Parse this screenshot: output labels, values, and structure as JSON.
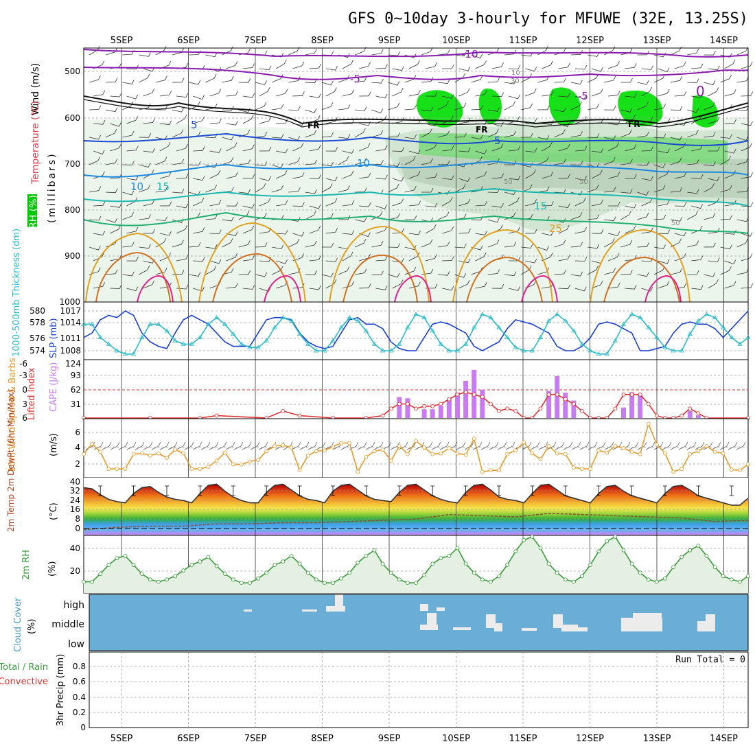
{
  "title": "GFS 0~10day 3-hourly for MFUWE (32E, 13.25S)",
  "dates": [
    "5SEP",
    "6SEP",
    "7SEP",
    "8SEP",
    "9SEP",
    "10SEP",
    "11SEP",
    "12SEP",
    "13SEP",
    "14SEP"
  ],
  "colors": {
    "grid": "#9a9a9a",
    "frame": "#000000",
    "rh_green": "#00dd00",
    "cloud_bg": "#6aaed6",
    "cape": "#c77cf0",
    "lifted": "#e03030",
    "wind_speed": "#e89a2a",
    "slp": "#1a3fd1",
    "thickness": "#2bbcc8",
    "rh2m": "#3a9a3a"
  },
  "panels": {
    "upper": {
      "ylabel_rh": "RH (%)",
      "ylabel_temp": "Temperature (°C)",
      "ylabel_wind": "Wind (m/s)",
      "ylabel_unit": "(millibars)",
      "ticks": [
        "500",
        "600",
        "700",
        "800",
        "900",
        "1000"
      ],
      "contour_labels": [
        "-10",
        "-5",
        "-5",
        "5",
        "5",
        "10",
        "10",
        "15",
        "15",
        "25",
        "FR",
        "FR",
        "FR",
        "50",
        "50",
        "50",
        "30",
        "10",
        "0"
      ]
    },
    "slp": {
      "ylabel_left": "1000-500mb Thickness (dm)",
      "ylabel_right": "SLP (mb)",
      "left_ticks": [
        "580",
        "578",
        "576",
        "574"
      ],
      "right_ticks": [
        "1017",
        "1014",
        "1011",
        "1008"
      ]
    },
    "cape": {
      "ylabel_left": "Lifted Index",
      "ylabel_right": "CAPE (J/kg)",
      "left_ticks": [
        "-6",
        "-3",
        "0",
        "3",
        "6"
      ],
      "right_ticks": [
        "124",
        "93",
        "62",
        "31"
      ]
    },
    "wind10": {
      "ylabel": "10m Wind Speed & Barbs",
      "ylabel_unit": "(m/s)",
      "ticks": [
        "6",
        "4",
        "2"
      ]
    },
    "temp2m": {
      "ylabel": "2m Temp 2m DewPt (6hr Min/Max)",
      "ylabel_unit": "(°C)",
      "ticks": [
        "40",
        "32",
        "24",
        "16",
        "8",
        "0"
      ]
    },
    "rh2m": {
      "ylabel": "2m RH",
      "ylabel_unit": "(%)",
      "ticks": [
        "40",
        "20"
      ]
    },
    "cloud": {
      "ylabel": "Cloud Cover",
      "ylabel_unit": "(%)",
      "levels": [
        "high",
        "middle",
        "low"
      ]
    },
    "precip": {
      "ylabel_a": "Total / Rain",
      "ylabel_b": "Convective",
      "ylabel_unit": "3hr Precip (mm)",
      "ticks": [
        "0.8",
        "0.6",
        "0.4",
        "0.2",
        "0"
      ],
      "run_total": "Run Total = 0"
    }
  },
  "chart_data": [
    {
      "type": "line",
      "name": "SLP",
      "ylim": [
        1008,
        1017
      ],
      "x": [
        0,
        3,
        6,
        9,
        12,
        15,
        18,
        21,
        24,
        27,
        30,
        33,
        36,
        39,
        42,
        45,
        48,
        51,
        54,
        57,
        60,
        63,
        66,
        69,
        72,
        75,
        78,
        81,
        84,
        87,
        90,
        93,
        96,
        99,
        102,
        105,
        108,
        111,
        114,
        117,
        120,
        123,
        126,
        129,
        132,
        135,
        138,
        141,
        144,
        147,
        150,
        153,
        156,
        159,
        162,
        165,
        168,
        171,
        174,
        177,
        180,
        183,
        186,
        189,
        192,
        195,
        198,
        201,
        204,
        207,
        210,
        213,
        216,
        219,
        222,
        225,
        228,
        231,
        234,
        237,
        240
      ],
      "values": [
        1011,
        1012,
        1015,
        1016,
        1015.5,
        1017,
        1016,
        1012,
        1010,
        1009,
        1008.5,
        1012,
        1015,
        1016,
        1015,
        1014,
        1012,
        1010,
        1009,
        1009,
        1009,
        1012,
        1015,
        1015.5,
        1015.5,
        1015,
        1012,
        1010,
        1009,
        1008.5,
        1009,
        1012,
        1015,
        1015.5,
        1014,
        1014,
        1013,
        1010,
        1008.5,
        1008,
        1008,
        1011,
        1014,
        1014.5,
        1014,
        1013,
        1012,
        1009,
        1008,
        1009,
        1010,
        1013,
        1015,
        1014.5,
        1014,
        1013,
        1012,
        1009,
        1008,
        1008,
        1009,
        1011,
        1014,
        1014.5,
        1014,
        1013,
        1012,
        1008,
        1008,
        1008.5,
        1009,
        1012,
        1014,
        1014.5,
        1014,
        1014,
        1013,
        1011,
        1013,
        1015,
        1017
      ]
    },
    {
      "type": "line",
      "name": "Thickness",
      "ylim": [
        573,
        581
      ],
      "x": [
        0,
        3,
        6,
        9,
        12,
        15,
        18,
        21,
        24,
        27,
        30,
        33,
        36,
        39,
        42,
        45,
        48,
        51,
        54,
        57,
        60,
        63,
        66,
        69,
        72,
        75,
        78,
        81,
        84,
        87,
        90,
        93,
        96,
        99,
        102,
        105,
        108,
        111,
        114,
        117,
        120,
        123,
        126,
        129,
        132,
        135,
        138,
        141,
        144,
        147,
        150,
        153,
        156,
        159,
        162,
        165,
        168,
        171,
        174,
        177,
        180,
        183,
        186,
        189,
        192,
        195,
        198,
        201,
        204,
        207,
        210,
        213,
        216,
        219,
        222,
        225,
        228,
        231,
        234,
        237,
        240
      ],
      "values": [
        578,
        578,
        576,
        575,
        574,
        573.5,
        573.5,
        576,
        578,
        578,
        577,
        575.5,
        575,
        575,
        576,
        578,
        579,
        578,
        576.5,
        575,
        574.5,
        574.5,
        575.5,
        577.5,
        579,
        578.5,
        576.5,
        575,
        574,
        574,
        575.5,
        577.5,
        579,
        578.5,
        577,
        575,
        574,
        574,
        575,
        577.5,
        579.5,
        579,
        577,
        575,
        574,
        574,
        575,
        577.5,
        579.5,
        579,
        577.5,
        576,
        574.5,
        574,
        574,
        576,
        578.5,
        579.5,
        578.5,
        577,
        575,
        574,
        573.5,
        573.5,
        575.5,
        578,
        579.5,
        579,
        577.5,
        576,
        574.5,
        574,
        574,
        576.5,
        578.5,
        579.5,
        579,
        577.5,
        576,
        575,
        576
      ]
    },
    {
      "type": "bar",
      "name": "CAPE",
      "ylim": [
        0,
        124
      ],
      "x": [
        114,
        117,
        123,
        126,
        129,
        132,
        135,
        138,
        141,
        144,
        147,
        150,
        168,
        171,
        174,
        177,
        180,
        192,
        195,
        198,
        201,
        204,
        219,
        222
      ],
      "values": [
        48,
        45,
        20,
        20,
        28,
        45,
        58,
        85,
        110,
        65,
        0,
        0,
        62,
        96,
        58,
        40,
        0,
        0,
        24,
        59,
        52,
        0,
        16,
        6
      ]
    },
    {
      "type": "line",
      "name": "Lifted Index",
      "ylim": [
        6,
        -6
      ],
      "x": [
        0,
        24,
        42,
        48,
        66,
        72,
        78,
        90,
        102,
        108,
        111,
        114,
        117,
        120,
        123,
        126,
        129,
        132,
        135,
        138,
        141,
        144,
        147,
        150,
        153,
        156,
        159,
        162,
        165,
        168,
        171,
        174,
        177,
        180,
        183,
        186,
        189,
        192,
        195,
        198,
        201,
        204,
        207,
        210,
        213,
        216,
        219,
        222,
        225,
        240
      ],
      "values": [
        6,
        6,
        6,
        5.5,
        6,
        4.5,
        5.5,
        6,
        6,
        5.5,
        4,
        3,
        3,
        4,
        3.5,
        3.5,
        3,
        2,
        1,
        0.5,
        1,
        1.5,
        3,
        4.5,
        4,
        4.5,
        6,
        6,
        4,
        1,
        1,
        2,
        3,
        4.5,
        6,
        6,
        6,
        4,
        1,
        1,
        1,
        3,
        5.5,
        6,
        6,
        5.5,
        4,
        5,
        6,
        6
      ]
    },
    {
      "type": "line",
      "name": "10m Wind Speed",
      "ylim": [
        0,
        8
      ],
      "x": [
        0,
        3,
        6,
        9,
        12,
        15,
        18,
        21,
        24,
        27,
        30,
        33,
        36,
        39,
        42,
        45,
        48,
        51,
        54,
        57,
        60,
        63,
        66,
        69,
        72,
        75,
        78,
        81,
        84,
        87,
        90,
        93,
        96,
        99,
        102,
        105,
        108,
        111,
        114,
        117,
        120,
        123,
        126,
        129,
        132,
        135,
        138,
        141,
        144,
        147,
        150,
        153,
        156,
        159,
        162,
        165,
        168,
        171,
        174,
        177,
        180,
        183,
        186,
        189,
        192,
        195,
        198,
        201,
        204,
        207,
        210,
        213,
        216,
        219,
        222,
        225,
        228,
        231,
        234,
        237,
        240
      ],
      "values": [
        3.2,
        4.6,
        3.5,
        1.2,
        1.2,
        1.2,
        3.2,
        3.3,
        3,
        3.3,
        2.7,
        3.8,
        3.3,
        1.2,
        1.2,
        1.5,
        2.3,
        3.4,
        1.8,
        1.8,
        2.2,
        2.4,
        3.6,
        4.3,
        4.4,
        4.1,
        1,
        3,
        3.6,
        3.7,
        4.2,
        4.7,
        4.7,
        0.8,
        2.8,
        3.6,
        3.8,
        2.3,
        4.3,
        3.2,
        5,
        4.1,
        3.2,
        3.3,
        4,
        3.3,
        3.1,
        5.3,
        0.8,
        1,
        1,
        3.2,
        3.7,
        4.8,
        3.3,
        2.5,
        4.3,
        3.3,
        3.2,
        1.4,
        1.2,
        1.2,
        3.7,
        3.4,
        4.3,
        4,
        3.5,
        3.2,
        7.3,
        4.5,
        3.3,
        0.8,
        1.2,
        3.2,
        3.6,
        4.3,
        3.5,
        3.3,
        1.1,
        1,
        1.8
      ]
    },
    {
      "type": "area",
      "name": "2m Temp",
      "ylim": [
        -4,
        40
      ],
      "x": [
        0,
        3,
        6,
        9,
        12,
        15,
        18,
        21,
        24,
        27,
        30,
        33,
        36,
        39,
        42,
        45,
        48,
        51,
        54,
        57,
        60,
        63,
        66,
        69,
        72,
        75,
        78,
        81,
        84,
        87,
        90,
        93,
        96,
        99,
        102,
        105,
        108,
        111,
        114,
        117,
        120,
        123,
        126,
        129,
        132,
        135,
        138,
        141,
        144,
        147,
        150,
        153,
        156,
        159,
        162,
        165,
        168,
        171,
        174,
        177,
        180,
        183,
        186,
        189,
        192,
        195,
        198,
        201,
        204,
        207,
        210,
        213,
        216,
        219,
        222,
        225,
        228,
        231,
        234,
        237,
        240
      ],
      "values": [
        35,
        34,
        29,
        25,
        23,
        22,
        30,
        35,
        36,
        31,
        27,
        25,
        24,
        22,
        30,
        37,
        38,
        32,
        27,
        24,
        22,
        22,
        31,
        37,
        38,
        33,
        28,
        25,
        24,
        22,
        32,
        37,
        38,
        33,
        28,
        25,
        24,
        23,
        31,
        37,
        38,
        33,
        28,
        25,
        23,
        22,
        31,
        37,
        38,
        33,
        27,
        25,
        24,
        22,
        30,
        37,
        38,
        33,
        28,
        26,
        24,
        22,
        30,
        36,
        37,
        32,
        28,
        26,
        24,
        22,
        30,
        36,
        37,
        33,
        28,
        26,
        24,
        22,
        20,
        20,
        26
      ]
    },
    {
      "type": "line",
      "name": "2m DewPt",
      "ylim": [
        -4,
        40
      ],
      "x": [
        0,
        12,
        24,
        36,
        48,
        60,
        72,
        84,
        96,
        108,
        120,
        132,
        144,
        156,
        168,
        180,
        192,
        204,
        216,
        228,
        240
      ],
      "values": [
        -1,
        1,
        2,
        2,
        4,
        4,
        5,
        5,
        6,
        7,
        8,
        12,
        11,
        10,
        13,
        12,
        11,
        10,
        9,
        6,
        7
      ]
    },
    {
      "type": "area",
      "name": "2m RH",
      "ylim": [
        0,
        50
      ],
      "x": [
        0,
        3,
        6,
        9,
        12,
        15,
        18,
        21,
        24,
        27,
        30,
        33,
        36,
        39,
        42,
        45,
        48,
        51,
        54,
        57,
        60,
        63,
        66,
        69,
        72,
        75,
        78,
        81,
        84,
        87,
        90,
        93,
        96,
        99,
        102,
        105,
        108,
        111,
        114,
        117,
        120,
        123,
        126,
        129,
        132,
        135,
        138,
        141,
        144,
        147,
        150,
        153,
        156,
        159,
        162,
        165,
        168,
        171,
        174,
        177,
        180,
        183,
        186,
        189,
        192,
        195,
        198,
        201,
        204,
        207,
        210,
        213,
        216,
        219,
        222,
        225,
        228,
        231,
        234,
        237,
        240
      ],
      "values": [
        10,
        10,
        17,
        25,
        31,
        33,
        25,
        17,
        12,
        10,
        12,
        15,
        20,
        25,
        28,
        32,
        24,
        17,
        12,
        9,
        9,
        13,
        18,
        25,
        28,
        33,
        26,
        18,
        12,
        9,
        9,
        13,
        18,
        27,
        33,
        38,
        26,
        18,
        12,
        9,
        9,
        16,
        26,
        31,
        33,
        40,
        26,
        18,
        12,
        10,
        15,
        25,
        37,
        47,
        50,
        40,
        26,
        18,
        12,
        10,
        15,
        25,
        37,
        46,
        50,
        38,
        26,
        18,
        12,
        10,
        13,
        23,
        32,
        38,
        42,
        33,
        23,
        15,
        12,
        10,
        15
      ]
    },
    {
      "type": "bar",
      "name": "3hr Precip",
      "ylim": [
        0,
        1
      ],
      "x": [],
      "values": []
    }
  ]
}
